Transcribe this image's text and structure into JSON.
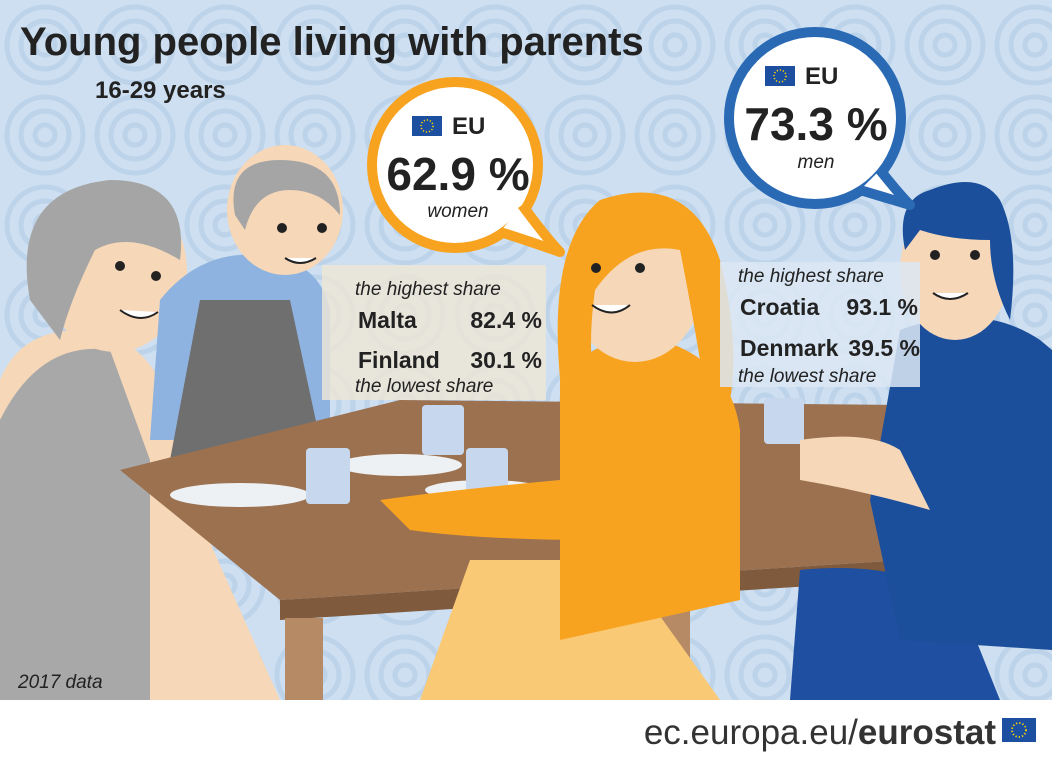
{
  "header": {
    "title": "Young people living with parents",
    "subtitle": "16-29 years"
  },
  "women": {
    "region": "EU",
    "value": "62.9 %",
    "label": "women",
    "highest_label": "the highest share",
    "highest": {
      "country": "Malta",
      "value": "82.4 %"
    },
    "lowest": {
      "country": "Finland",
      "value": "30.1 %"
    },
    "lowest_label": "the lowest share"
  },
  "men": {
    "region": "EU",
    "value": "73.3 %",
    "label": "men",
    "highest_label": "the highest share",
    "highest": {
      "country": "Croatia",
      "value": "93.1 %"
    },
    "lowest": {
      "country": "Denmark",
      "value": "39.5 %"
    },
    "lowest_label": "the lowest share"
  },
  "footnote": "2017 data",
  "source": {
    "site": "ec.europa.eu/",
    "brand": "eurostat"
  }
}
